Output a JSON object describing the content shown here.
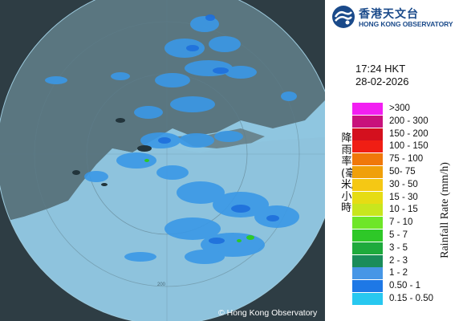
{
  "header": {
    "org_name_zh": "香港天文台",
    "org_name_en": "HONG KONG OBSERVATORY"
  },
  "timestamp": {
    "time": "17:24 HKT",
    "date": "28-02-2026"
  },
  "labels": {
    "rainfall_rate_zh": "降雨率(毫米/小時)",
    "rainfall_rate_en": "Rainfall Rate (mm/h)"
  },
  "legend": [
    {
      "label": ">300",
      "color": "#f21ff2"
    },
    {
      "label": "200 - 300",
      "color": "#c8127c"
    },
    {
      "label": "150 - 200",
      "color": "#d4101e"
    },
    {
      "label": "100 - 150",
      "color": "#f01e14"
    },
    {
      "label": "75 - 100",
      "color": "#f0780a"
    },
    {
      "label": "50- 75",
      "color": "#f0a00a"
    },
    {
      "label": "30 - 50",
      "color": "#f5c814"
    },
    {
      "label": "15 - 30",
      "color": "#e6dc14"
    },
    {
      "label": "10 - 15",
      "color": "#c8e61e"
    },
    {
      "label": "7 - 10",
      "color": "#6ee628"
    },
    {
      "label": "5 - 7",
      "color": "#2ec828"
    },
    {
      "label": "3 - 5",
      "color": "#1eaa3c"
    },
    {
      "label": "2 - 3",
      "color": "#1a8c5a"
    },
    {
      "label": "1 - 2",
      "color": "#4696e6"
    },
    {
      "label": "0.50 - 1",
      "color": "#1e78e6"
    },
    {
      "label": "0.15 - 0.50",
      "color": "#28c8f0"
    }
  ],
  "map": {
    "range_ring_label": "200",
    "copyright": "© Hong Kong Observatory"
  }
}
